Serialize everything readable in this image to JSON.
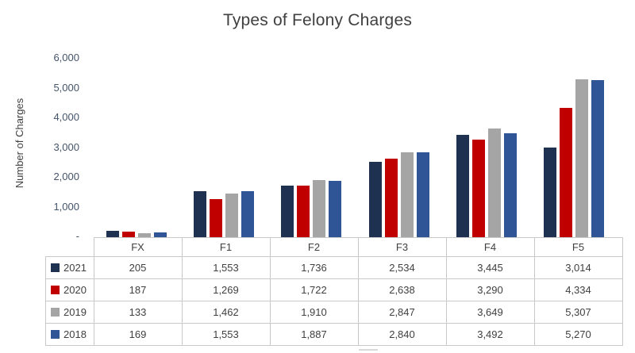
{
  "title": "Types of Felony Charges",
  "y_axis": {
    "label": "Number of Charges",
    "tick_labels": [
      "6,000",
      "5,000",
      "4,000",
      "3,000",
      "2,000",
      "1,000",
      "-"
    ],
    "max": 6000,
    "step": 1000
  },
  "chart_data": {
    "type": "bar",
    "title": "Types of Felony Charges",
    "xlabel": "",
    "ylabel": "Number of Charges",
    "ylim": [
      0,
      6000
    ],
    "grid": false,
    "legend_position": "data-table-left",
    "categories": [
      "FX",
      "F1",
      "F2",
      "F3",
      "F4",
      "F5"
    ],
    "series": [
      {
        "name": "2021",
        "color": "#1F3150",
        "values": [
          205,
          1553,
          1736,
          2534,
          3445,
          3014
        ]
      },
      {
        "name": "2020",
        "color": "#C00000",
        "values": [
          187,
          1269,
          1722,
          2638,
          3290,
          4334
        ]
      },
      {
        "name": "2019",
        "color": "#A5A5A5",
        "values": [
          133,
          1462,
          1910,
          2847,
          3649,
          5307
        ]
      },
      {
        "name": "2018",
        "color": "#2F5597",
        "values": [
          169,
          1553,
          1887,
          2840,
          3492,
          5270
        ]
      }
    ]
  },
  "table": {
    "column_headers": [
      "FX",
      "F1",
      "F2",
      "F3",
      "F4",
      "F5"
    ],
    "rows": [
      {
        "label": "2021",
        "swatch_color": "#1F3150",
        "values": [
          "205",
          "1,553",
          "1,736",
          "2,534",
          "3,445",
          "3,014"
        ]
      },
      {
        "label": "2020",
        "swatch_color": "#C00000",
        "values": [
          "187",
          "1,269",
          "1,722",
          "2,638",
          "3,290",
          "4,334"
        ]
      },
      {
        "label": "2019",
        "swatch_color": "#A5A5A5",
        "values": [
          "133",
          "1,462",
          "1,910",
          "2,847",
          "3,649",
          "5,307"
        ]
      },
      {
        "label": "2018",
        "swatch_color": "#2F5597",
        "values": [
          "169",
          "1,553",
          "1,887",
          "2,840",
          "3,492",
          "5,270"
        ]
      }
    ]
  },
  "colors": {
    "title_text": "#404040",
    "axis_tick_text": "#44546A",
    "table_text": "#404040",
    "table_border": "#C9C9C9",
    "background": "#FFFFFF"
  }
}
